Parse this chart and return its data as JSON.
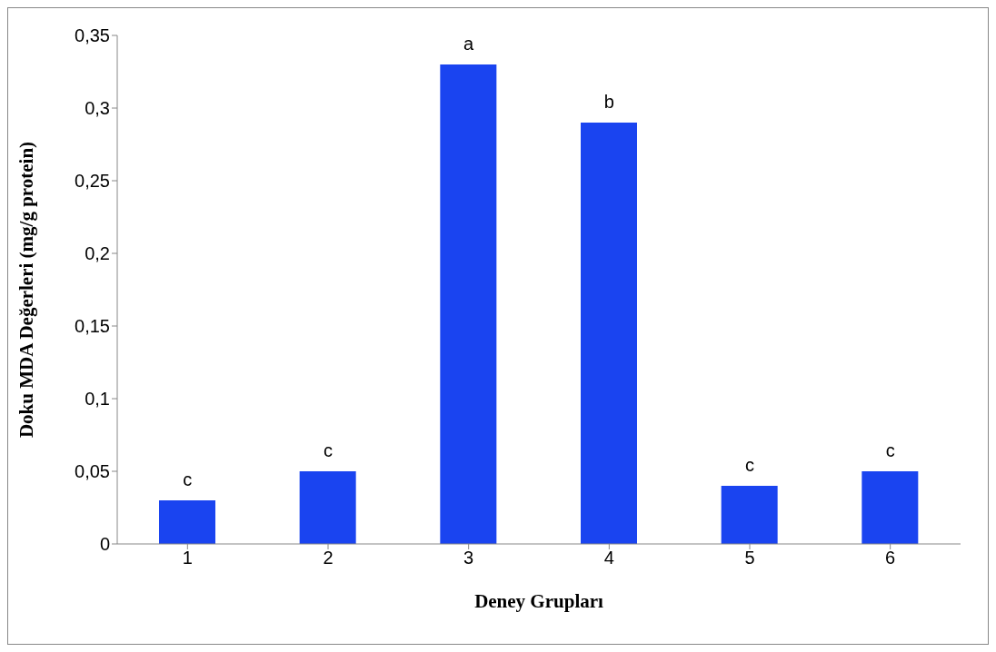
{
  "chart_data": {
    "type": "bar",
    "xlabel": "Deney Grupları",
    "ylabel": "Doku MDA Değerleri (mg/g protein)",
    "categories": [
      "1",
      "2",
      "3",
      "4",
      "5",
      "6"
    ],
    "values": [
      0.03,
      0.05,
      0.33,
      0.29,
      0.04,
      0.05
    ],
    "color": "#1a44f0",
    "ylim": [
      0,
      0.35
    ],
    "yticks": [
      {
        "value": 0,
        "label": "0"
      },
      {
        "value": 0.05,
        "label": "0,05"
      },
      {
        "value": 0.1,
        "label": "0,1"
      },
      {
        "value": 0.15,
        "label": "0,15"
      },
      {
        "value": 0.2,
        "label": "0,2"
      },
      {
        "value": 0.25,
        "label": "0,25"
      },
      {
        "value": 0.3,
        "label": "0,3"
      },
      {
        "value": 0.35,
        "label": "0,35"
      }
    ],
    "grid": false,
    "legend": false,
    "annotations": [
      {
        "text": "c",
        "x": "1",
        "y": 0.03
      },
      {
        "text": "c",
        "x": "2",
        "y": 0.05
      },
      {
        "text": "a",
        "x": "3",
        "y": 0.33
      },
      {
        "text": "b",
        "x": "4",
        "y": 0.29
      },
      {
        "text": "c",
        "x": "5",
        "y": 0.04
      },
      {
        "text": "c",
        "x": "6",
        "y": 0.05
      }
    ]
  }
}
